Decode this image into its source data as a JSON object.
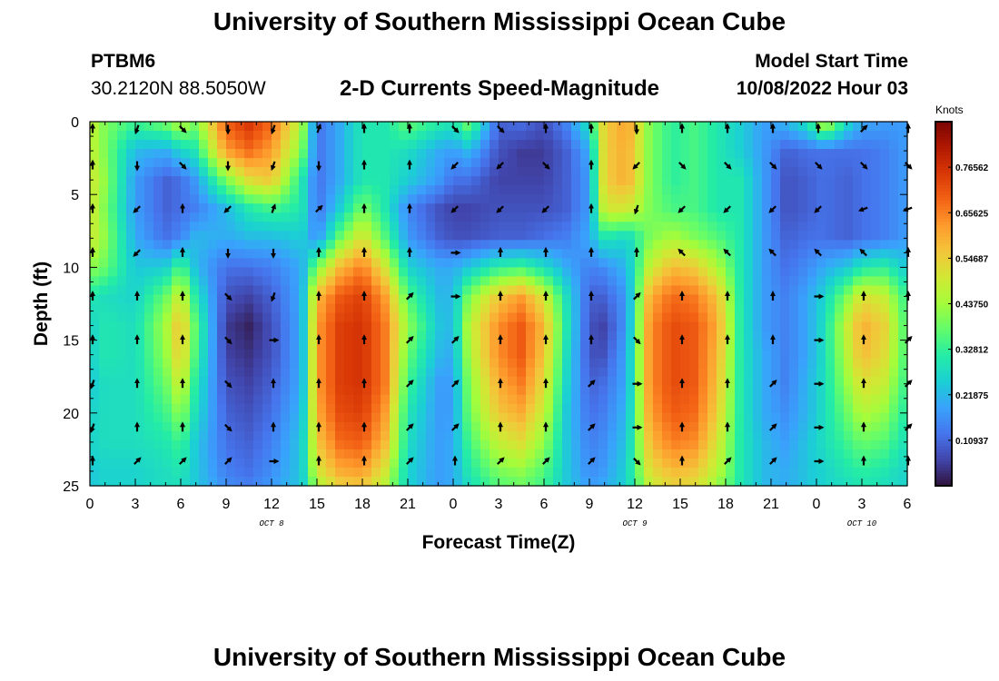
{
  "header": {
    "title": "University of Southern Mississippi Ocean Cube",
    "station_id": "PTBM6",
    "coordinates": "30.2120N  88.5050W",
    "subtitle": "2-D Currents Speed-Magnitude",
    "model_start_label": "Model Start Time",
    "model_start_value": "10/08/2022 Hour 03"
  },
  "footer": {
    "title": "University of Southern Mississippi Ocean Cube"
  },
  "chart_data": {
    "type": "heatmap",
    "title": "2-D Currents Speed-Magnitude",
    "xlabel": "Forecast Time(Z)",
    "ylabel": "Depth (ft)",
    "x_tick_labels": [
      "0",
      "3",
      "6",
      "9",
      "12",
      "15",
      "18",
      "21",
      "0",
      "3",
      "6",
      "9",
      "12",
      "15",
      "18",
      "21",
      "0",
      "3",
      "6"
    ],
    "x_range_hours": [
      0,
      54
    ],
    "date_labels": [
      {
        "text": "OCT 8",
        "hour": 12
      },
      {
        "text": "OCT 9",
        "hour": 36
      },
      {
        "text": "OCT 10",
        "hour": 51
      }
    ],
    "y_ticks": [
      0,
      5,
      10,
      15,
      20,
      25
    ],
    "ylim": [
      0,
      25
    ],
    "y_inverted": true,
    "colorbar": {
      "unit": "Knots",
      "min": 0,
      "max": 0.875,
      "tick_labels": [
        "0.76562",
        "0.65625",
        "0.54687",
        "0.43750",
        "0.32812",
        "0.21875",
        "0.10937"
      ],
      "tick_values": [
        0.765625,
        0.65625,
        0.546875,
        0.4375,
        0.328125,
        0.21875,
        0.109375
      ],
      "colors": [
        "#30123b",
        "#4145ab",
        "#4675ed",
        "#39a2fc",
        "#1bcfd4",
        "#24eca6",
        "#61fc6c",
        "#a4fc3b",
        "#d1e834",
        "#f3c63a",
        "#fe9b2d",
        "#f36315",
        "#d93806",
        "#b11901",
        "#7a0403"
      ]
    },
    "depth_rows": [
      0,
      2,
      4,
      6,
      8,
      10,
      12,
      14,
      16,
      18,
      20,
      22,
      24,
      25
    ],
    "time_columns": [
      0,
      1,
      3,
      5,
      6,
      7,
      9,
      10.5,
      12,
      14,
      15,
      16.5,
      18,
      19.5,
      21,
      23,
      24,
      25,
      27,
      28.5,
      30,
      31.5,
      33,
      34,
      35.5,
      37,
      38.5,
      40,
      41.5,
      43,
      44.5,
      46,
      47.5,
      48.5,
      50,
      51,
      52.5,
      54
    ],
    "speed_knots": [
      [
        0.48,
        0.4,
        0.34,
        0.4,
        0.47,
        0.4,
        0.7,
        0.76,
        0.68,
        0.45,
        0.12,
        0.2,
        0.3,
        0.3,
        0.38,
        0.32,
        0.3,
        0.4,
        0.1,
        0.12,
        0.08,
        0.15,
        0.3,
        0.55,
        0.62,
        0.4,
        0.32,
        0.35,
        0.3,
        0.25,
        0.18,
        0.22,
        0.3,
        0.5,
        0.28,
        0.2,
        0.18,
        0.18
      ],
      [
        0.48,
        0.4,
        0.22,
        0.2,
        0.26,
        0.3,
        0.62,
        0.68,
        0.62,
        0.4,
        0.12,
        0.2,
        0.3,
        0.3,
        0.28,
        0.2,
        0.18,
        0.22,
        0.08,
        0.05,
        0.05,
        0.1,
        0.2,
        0.55,
        0.6,
        0.4,
        0.32,
        0.35,
        0.3,
        0.25,
        0.18,
        0.1,
        0.12,
        0.12,
        0.12,
        0.12,
        0.14,
        0.18
      ],
      [
        0.5,
        0.42,
        0.18,
        0.1,
        0.12,
        0.18,
        0.4,
        0.52,
        0.56,
        0.3,
        0.12,
        0.2,
        0.3,
        0.3,
        0.25,
        0.18,
        0.12,
        0.12,
        0.06,
        0.06,
        0.06,
        0.1,
        0.18,
        0.55,
        0.6,
        0.4,
        0.32,
        0.35,
        0.3,
        0.3,
        0.18,
        0.08,
        0.1,
        0.12,
        0.1,
        0.12,
        0.14,
        0.18
      ],
      [
        0.5,
        0.4,
        0.18,
        0.1,
        0.12,
        0.14,
        0.22,
        0.3,
        0.34,
        0.3,
        0.12,
        0.25,
        0.4,
        0.3,
        0.15,
        0.08,
        0.06,
        0.06,
        0.08,
        0.08,
        0.08,
        0.1,
        0.18,
        0.5,
        0.5,
        0.4,
        0.35,
        0.35,
        0.3,
        0.3,
        0.18,
        0.08,
        0.1,
        0.12,
        0.1,
        0.12,
        0.14,
        0.18
      ],
      [
        0.5,
        0.42,
        0.2,
        0.12,
        0.15,
        0.22,
        0.2,
        0.22,
        0.22,
        0.25,
        0.16,
        0.38,
        0.52,
        0.36,
        0.18,
        0.1,
        0.08,
        0.08,
        0.1,
        0.1,
        0.12,
        0.14,
        0.2,
        0.3,
        0.26,
        0.4,
        0.45,
        0.4,
        0.36,
        0.3,
        0.18,
        0.1,
        0.12,
        0.12,
        0.1,
        0.12,
        0.14,
        0.18
      ],
      [
        0.42,
        0.38,
        0.24,
        0.25,
        0.36,
        0.22,
        0.12,
        0.12,
        0.14,
        0.2,
        0.4,
        0.58,
        0.66,
        0.5,
        0.26,
        0.2,
        0.2,
        0.24,
        0.32,
        0.34,
        0.28,
        0.2,
        0.14,
        0.16,
        0.22,
        0.48,
        0.58,
        0.55,
        0.45,
        0.3,
        0.18,
        0.12,
        0.16,
        0.2,
        0.24,
        0.3,
        0.32,
        0.24
      ],
      [
        0.3,
        0.28,
        0.26,
        0.38,
        0.5,
        0.3,
        0.08,
        0.06,
        0.1,
        0.2,
        0.58,
        0.7,
        0.74,
        0.62,
        0.36,
        0.22,
        0.22,
        0.4,
        0.56,
        0.62,
        0.5,
        0.28,
        0.1,
        0.1,
        0.18,
        0.6,
        0.68,
        0.66,
        0.56,
        0.3,
        0.18,
        0.14,
        0.2,
        0.26,
        0.4,
        0.52,
        0.48,
        0.32
      ],
      [
        0.26,
        0.3,
        0.28,
        0.44,
        0.58,
        0.36,
        0.05,
        0.02,
        0.08,
        0.2,
        0.62,
        0.74,
        0.76,
        0.66,
        0.42,
        0.24,
        0.22,
        0.46,
        0.64,
        0.7,
        0.58,
        0.3,
        0.08,
        0.06,
        0.18,
        0.64,
        0.72,
        0.7,
        0.6,
        0.3,
        0.18,
        0.14,
        0.2,
        0.28,
        0.48,
        0.6,
        0.54,
        0.34
      ],
      [
        0.26,
        0.3,
        0.28,
        0.42,
        0.56,
        0.34,
        0.06,
        0.04,
        0.08,
        0.2,
        0.62,
        0.74,
        0.76,
        0.66,
        0.38,
        0.22,
        0.2,
        0.44,
        0.64,
        0.7,
        0.56,
        0.28,
        0.08,
        0.08,
        0.2,
        0.64,
        0.72,
        0.7,
        0.58,
        0.3,
        0.2,
        0.14,
        0.2,
        0.28,
        0.46,
        0.58,
        0.52,
        0.34
      ],
      [
        0.24,
        0.28,
        0.28,
        0.38,
        0.5,
        0.3,
        0.08,
        0.06,
        0.1,
        0.2,
        0.62,
        0.74,
        0.76,
        0.66,
        0.34,
        0.18,
        0.18,
        0.4,
        0.6,
        0.66,
        0.52,
        0.26,
        0.1,
        0.12,
        0.2,
        0.64,
        0.72,
        0.7,
        0.56,
        0.3,
        0.2,
        0.14,
        0.22,
        0.28,
        0.42,
        0.52,
        0.48,
        0.32
      ],
      [
        0.26,
        0.28,
        0.28,
        0.34,
        0.42,
        0.28,
        0.1,
        0.08,
        0.12,
        0.22,
        0.6,
        0.72,
        0.74,
        0.62,
        0.3,
        0.18,
        0.18,
        0.38,
        0.56,
        0.6,
        0.48,
        0.24,
        0.12,
        0.14,
        0.22,
        0.62,
        0.7,
        0.68,
        0.54,
        0.3,
        0.2,
        0.16,
        0.22,
        0.28,
        0.38,
        0.46,
        0.42,
        0.3
      ],
      [
        0.26,
        0.28,
        0.28,
        0.3,
        0.34,
        0.24,
        0.12,
        0.1,
        0.14,
        0.24,
        0.56,
        0.68,
        0.7,
        0.58,
        0.28,
        0.18,
        0.2,
        0.34,
        0.48,
        0.52,
        0.42,
        0.24,
        0.14,
        0.16,
        0.24,
        0.58,
        0.66,
        0.64,
        0.5,
        0.3,
        0.22,
        0.18,
        0.24,
        0.28,
        0.34,
        0.38,
        0.36,
        0.28
      ],
      [
        0.24,
        0.26,
        0.26,
        0.28,
        0.3,
        0.24,
        0.14,
        0.12,
        0.16,
        0.24,
        0.5,
        0.6,
        0.62,
        0.5,
        0.26,
        0.18,
        0.2,
        0.3,
        0.4,
        0.42,
        0.36,
        0.24,
        0.16,
        0.18,
        0.26,
        0.52,
        0.58,
        0.56,
        0.46,
        0.3,
        0.22,
        0.2,
        0.24,
        0.26,
        0.3,
        0.32,
        0.3,
        0.26
      ],
      [
        0.24,
        0.26,
        0.26,
        0.28,
        0.28,
        0.24,
        0.16,
        0.14,
        0.18,
        0.24,
        0.44,
        0.54,
        0.56,
        0.46,
        0.26,
        0.18,
        0.2,
        0.28,
        0.36,
        0.38,
        0.34,
        0.24,
        0.18,
        0.2,
        0.26,
        0.48,
        0.54,
        0.52,
        0.42,
        0.3,
        0.22,
        0.2,
        0.24,
        0.26,
        0.28,
        0.3,
        0.28,
        0.26
      ]
    ],
    "arrow_depths": [
      0,
      3,
      6,
      9,
      12,
      15,
      18,
      21,
      24
    ],
    "arrow_hours": [
      0,
      3,
      6,
      9,
      12,
      15,
      18,
      21,
      24,
      27,
      30,
      33,
      36,
      39,
      42,
      45,
      48,
      51,
      54
    ],
    "arrow_direction_deg": [
      [
        0,
        200,
        135,
        180,
        200,
        20,
        0,
        0,
        135,
        135,
        0,
        0,
        180,
        0,
        0,
        0,
        0,
        45,
        0
      ],
      [
        0,
        180,
        135,
        180,
        200,
        180,
        0,
        0,
        225,
        225,
        135,
        0,
        225,
        135,
        135,
        135,
        135,
        135,
        135
      ],
      [
        0,
        225,
        0,
        225,
        20,
        45,
        0,
        0,
        225,
        225,
        225,
        0,
        200,
        225,
        225,
        225,
        225,
        250,
        250
      ],
      [
        0,
        225,
        0,
        180,
        180,
        0,
        0,
        0,
        90,
        0,
        0,
        0,
        0,
        315,
        315,
        315,
        315,
        315,
        0
      ],
      [
        0,
        0,
        0,
        135,
        200,
        0,
        0,
        45,
        90,
        0,
        0,
        0,
        45,
        0,
        0,
        0,
        90,
        0,
        0
      ],
      [
        0,
        0,
        0,
        135,
        90,
        0,
        0,
        45,
        45,
        0,
        0,
        0,
        135,
        0,
        0,
        0,
        90,
        0,
        45
      ],
      [
        200,
        0,
        0,
        135,
        0,
        0,
        0,
        45,
        45,
        0,
        0,
        45,
        90,
        0,
        0,
        45,
        90,
        0,
        45
      ],
      [
        200,
        0,
        0,
        135,
        0,
        0,
        0,
        45,
        45,
        0,
        0,
        45,
        90,
        0,
        0,
        45,
        90,
        0,
        45
      ],
      [
        0,
        45,
        45,
        45,
        90,
        0,
        0,
        45,
        0,
        45,
        45,
        45,
        135,
        0,
        45,
        45,
        90,
        0,
        0
      ]
    ]
  }
}
